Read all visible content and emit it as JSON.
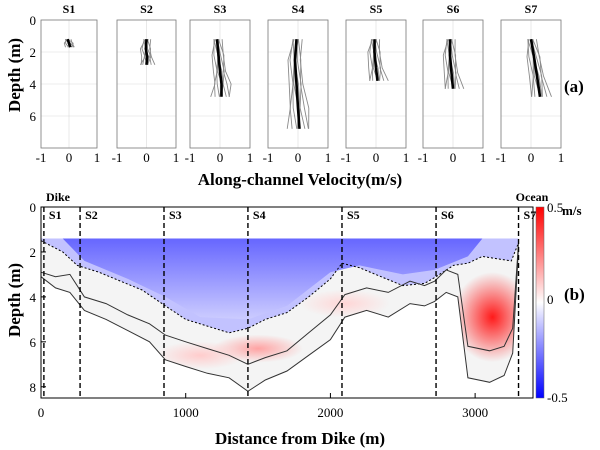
{
  "chart_data": [
    {
      "panel_label": "(a)",
      "type": "line",
      "xlabel": "Along-channel Velocity(m/s)",
      "ylabel": "Depth (m)",
      "xlim": [
        -1,
        1
      ],
      "ylim": [
        0,
        8
      ],
      "x_ticks": [
        "-1",
        "0",
        "1"
      ],
      "y_ticks": [
        "0",
        "2",
        "4",
        "6"
      ],
      "grid": true,
      "stations": [
        {
          "name": "S1",
          "max_depth": 1.7,
          "mean": [
            [
              -0.05,
              1.2
            ],
            [
              0.0,
              1.45
            ],
            [
              0.05,
              1.7
            ]
          ],
          "spread": 0.35
        },
        {
          "name": "S2",
          "max_depth": 2.8,
          "mean": [
            [
              0.0,
              1.2
            ],
            [
              -0.02,
              1.8
            ],
            [
              0.02,
              2.3
            ],
            [
              0.0,
              2.8
            ]
          ],
          "spread": 0.45
        },
        {
          "name": "S3",
          "max_depth": 4.8,
          "mean": [
            [
              -0.1,
              1.2
            ],
            [
              -0.05,
              2.2
            ],
            [
              0.0,
              3.2
            ],
            [
              0.05,
              4.0
            ],
            [
              0.05,
              4.8
            ]
          ],
          "spread": 0.6
        },
        {
          "name": "S4",
          "max_depth": 6.8,
          "mean": [
            [
              -0.05,
              1.2
            ],
            [
              -0.1,
              2.5
            ],
            [
              -0.05,
              4.0
            ],
            [
              0.0,
              5.5
            ],
            [
              0.05,
              6.8
            ]
          ],
          "spread": 0.7
        },
        {
          "name": "S5",
          "max_depth": 3.8,
          "mean": [
            [
              -0.05,
              1.2
            ],
            [
              -0.05,
              2.0
            ],
            [
              0.0,
              3.0
            ],
            [
              0.05,
              3.8
            ]
          ],
          "spread": 0.6
        },
        {
          "name": "S6",
          "max_depth": 4.3,
          "mean": [
            [
              -0.1,
              1.2
            ],
            [
              -0.1,
              2.2
            ],
            [
              -0.05,
              3.3
            ],
            [
              0.0,
              4.3
            ]
          ],
          "spread": 0.6
        },
        {
          "name": "S7",
          "max_depth": 4.8,
          "mean": [
            [
              0.0,
              1.2
            ],
            [
              0.1,
              2.3
            ],
            [
              0.2,
              3.5
            ],
            [
              0.3,
              4.8
            ]
          ],
          "spread": 0.65
        }
      ]
    },
    {
      "panel_label": "(b)",
      "type": "heatmap",
      "xlabel": "Distance from Dike (m)",
      "ylabel": "Depth (m)",
      "xlim": [
        0,
        3400
      ],
      "ylim": [
        0,
        8.5
      ],
      "x_ticks": [
        "0",
        "1000",
        "2000",
        "3000"
      ],
      "y_ticks": [
        "0",
        "2",
        "4",
        "6",
        "8"
      ],
      "colorbar": {
        "min": -0.5,
        "max": 0.5,
        "ticks": [
          "0.5",
          "0",
          "-0.5"
        ],
        "unit": "m/s"
      },
      "end_labels": {
        "left": "Dike",
        "right": "Ocean"
      },
      "station_positions": [
        {
          "name": "S1",
          "x": 20
        },
        {
          "name": "S2",
          "x": 270
        },
        {
          "name": "S3",
          "x": 850
        },
        {
          "name": "S4",
          "x": 1430
        },
        {
          "name": "S5",
          "x": 2080
        },
        {
          "name": "S6",
          "x": 2730
        },
        {
          "name": "S7",
          "x": 3300
        }
      ],
      "surface_depth": 1.4,
      "inner_bed_profile": [
        [
          0,
          2.9
        ],
        [
          100,
          3.1
        ],
        [
          200,
          3.0
        ],
        [
          300,
          4.0
        ],
        [
          450,
          4.3
        ],
        [
          600,
          4.8
        ],
        [
          750,
          5.2
        ],
        [
          860,
          5.7
        ],
        [
          1000,
          6.0
        ],
        [
          1150,
          6.3
        ],
        [
          1300,
          6.6
        ],
        [
          1430,
          7.0
        ],
        [
          1550,
          6.7
        ],
        [
          1700,
          6.4
        ],
        [
          1850,
          5.6
        ],
        [
          2000,
          4.8
        ],
        [
          2100,
          3.9
        ],
        [
          2250,
          3.6
        ],
        [
          2400,
          3.8
        ],
        [
          2550,
          3.3
        ],
        [
          2650,
          3.5
        ],
        [
          2720,
          3.3
        ],
        [
          2800,
          2.8
        ],
        [
          2880,
          3.0
        ],
        [
          2950,
          6.2
        ],
        [
          3100,
          6.4
        ],
        [
          3200,
          6.2
        ],
        [
          3260,
          5.4
        ],
        [
          3300,
          1.6
        ]
      ],
      "bed_profile": [
        [
          0,
          3.1
        ],
        [
          100,
          3.6
        ],
        [
          200,
          3.8
        ],
        [
          300,
          4.6
        ],
        [
          450,
          5.0
        ],
        [
          600,
          5.5
        ],
        [
          750,
          6.0
        ],
        [
          860,
          6.8
        ],
        [
          1000,
          7.1
        ],
        [
          1150,
          7.4
        ],
        [
          1300,
          7.6
        ],
        [
          1430,
          8.2
        ],
        [
          1550,
          7.7
        ],
        [
          1700,
          7.3
        ],
        [
          1850,
          6.6
        ],
        [
          2000,
          5.9
        ],
        [
          2100,
          4.9
        ],
        [
          2250,
          4.6
        ],
        [
          2400,
          4.9
        ],
        [
          2550,
          4.3
        ],
        [
          2650,
          4.4
        ],
        [
          2720,
          4.2
        ],
        [
          2800,
          3.8
        ],
        [
          2880,
          4.0
        ],
        [
          2950,
          7.6
        ],
        [
          3100,
          7.8
        ],
        [
          3200,
          7.5
        ],
        [
          3260,
          6.5
        ],
        [
          3300,
          1.8
        ]
      ],
      "zero_contour": [
        [
          0,
          1.5
        ],
        [
          150,
          2.0
        ],
        [
          250,
          2.6
        ],
        [
          400,
          2.9
        ],
        [
          550,
          3.3
        ],
        [
          700,
          3.7
        ],
        [
          860,
          4.4
        ],
        [
          1000,
          5.0
        ],
        [
          1150,
          5.3
        ],
        [
          1300,
          5.6
        ],
        [
          1430,
          5.4
        ],
        [
          1550,
          5.0
        ],
        [
          1700,
          4.7
        ],
        [
          1850,
          4.0
        ],
        [
          2000,
          3.2
        ],
        [
          2080,
          2.5
        ],
        [
          2200,
          2.7
        ],
        [
          2350,
          3.1
        ],
        [
          2500,
          3.5
        ],
        [
          2650,
          3.4
        ],
        [
          2730,
          3.1
        ],
        [
          2850,
          2.6
        ],
        [
          2950,
          2.5
        ],
        [
          3050,
          2.2
        ],
        [
          3150,
          2.3
        ],
        [
          3250,
          2.4
        ],
        [
          3300,
          1.6
        ]
      ],
      "blue_core": [
        [
          150,
          1.4
        ],
        [
          3050,
          1.4
        ],
        [
          2950,
          2.2
        ],
        [
          2720,
          2.8
        ],
        [
          2500,
          3.0
        ],
        [
          2200,
          2.6
        ],
        [
          2000,
          2.9
        ],
        [
          1700,
          4.4
        ],
        [
          1430,
          5.0
        ],
        [
          1100,
          4.9
        ],
        [
          860,
          4.0
        ],
        [
          600,
          3.2
        ],
        [
          300,
          2.4
        ]
      ],
      "red_cores": [
        {
          "x": 3120,
          "depth": 4.9,
          "intensity": 0.45
        },
        {
          "x": 1500,
          "depth": 6.3,
          "intensity": 0.18
        },
        {
          "x": 1100,
          "depth": 6.6,
          "intensity": 0.1
        },
        {
          "x": 2100,
          "depth": 4.3,
          "intensity": 0.08
        }
      ]
    }
  ]
}
